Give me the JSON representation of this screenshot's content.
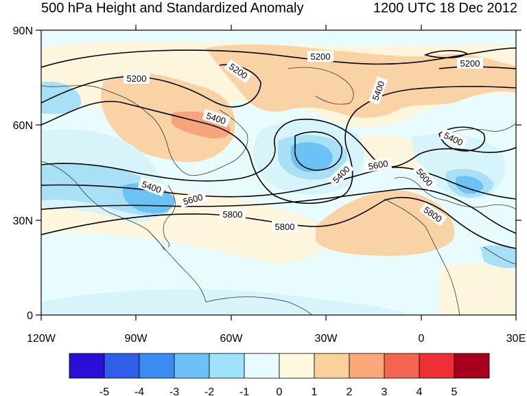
{
  "header": {
    "title": "500 hPa Height and Standardized Anomaly",
    "valid_time": "1200 UTC 18 Dec 2012"
  },
  "map": {
    "lon_labels": [
      "120W",
      "90W",
      "60W",
      "30W",
      "0",
      "30E"
    ],
    "lat_labels": [
      "90N",
      "60N",
      "30N",
      "0"
    ],
    "contour_labels": [
      {
        "name": "5200-a",
        "text": "5200"
      },
      {
        "name": "5200-b",
        "text": "5200"
      },
      {
        "name": "5200-c",
        "text": "5200"
      },
      {
        "name": "5200-d",
        "text": "5200"
      },
      {
        "name": "5400-a",
        "text": "5400"
      },
      {
        "name": "5400-b",
        "text": "5400"
      },
      {
        "name": "5400-c",
        "text": "5400"
      },
      {
        "name": "5400-d",
        "text": "5400"
      },
      {
        "name": "5400-e",
        "text": "5400"
      },
      {
        "name": "5600-a",
        "text": "5600"
      },
      {
        "name": "5600-b",
        "text": "5600"
      },
      {
        "name": "5600-c",
        "text": "5600"
      },
      {
        "name": "5800-a",
        "text": "5800"
      },
      {
        "name": "5800-b",
        "text": "5800"
      },
      {
        "name": "5800-c",
        "text": "5800"
      }
    ]
  },
  "colorbar": {
    "labels": [
      "-5",
      "-4",
      "-3",
      "-2",
      "-1",
      "0",
      "1",
      "2",
      "3",
      "4",
      "5"
    ],
    "colors": [
      "#2a0fd4",
      "#2f5fe8",
      "#3a8cf2",
      "#6cc2f5",
      "#9fe3fa",
      "#e8fbfd",
      "#fefae0",
      "#fcd09a",
      "#fca77a",
      "#f4654f",
      "#ef2f36",
      "#a8001f"
    ]
  },
  "colors": {
    "neg_1": "#d8f4fb",
    "neg_2": "#a8e0f5",
    "neg_3": "#6cc2f5",
    "neg_4": "#3a8cf2",
    "pos_1": "#fdf6dc",
    "pos_2": "#f9d3a5",
    "pos_3": "#f6a47e"
  }
}
